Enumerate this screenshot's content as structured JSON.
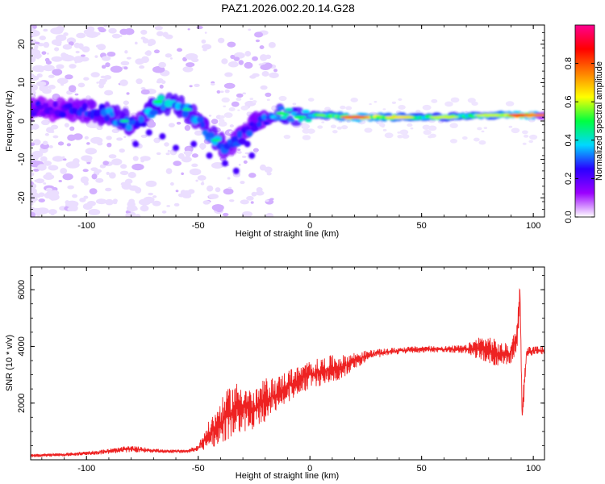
{
  "title": "PAZ1.2026.002.20.14.G28",
  "chart_data": [
    {
      "type": "heatmap",
      "xlabel": "Height of straight line (km)",
      "ylabel": "Frequency (Hz)",
      "xlim": [
        -125,
        105
      ],
      "ylim": [
        -25,
        25
      ],
      "xticks": [
        -100,
        -50,
        0,
        50,
        100
      ],
      "yticks": [
        -20,
        -10,
        0,
        10,
        20
      ],
      "colorbar": {
        "label": "Normalized spectral amplitude",
        "range": [
          0,
          1
        ],
        "ticks": [
          0.0,
          0.2,
          0.4,
          0.6,
          0.8
        ],
        "tick_labels": [
          "0.0",
          "0.2",
          "0.4",
          "0.6",
          "0.8"
        ],
        "colormap": [
          "#ffffff",
          "#9b00ff",
          "#2a00ff",
          "#00d8ff",
          "#00ff40",
          "#ffff00",
          "#ff8000",
          "#ff0000",
          "#ff0090"
        ]
      },
      "features": [
        {
          "x": -120,
          "y": 3,
          "amplitude": 0.25
        },
        {
          "x": -110,
          "y": 3,
          "amplitude": 0.3
        },
        {
          "x": -100,
          "y": 3,
          "amplitude": 0.35
        },
        {
          "x": -92,
          "y": 2,
          "amplitude": 0.4
        },
        {
          "x": -83,
          "y": 0,
          "amplitude": 0.45
        },
        {
          "x": -78,
          "y": -2,
          "amplitude": 0.35
        },
        {
          "x": -68,
          "y": 5,
          "amplitude": 0.5
        },
        {
          "x": -55,
          "y": 3,
          "amplitude": 0.45
        },
        {
          "x": -47,
          "y": -2,
          "amplitude": 0.4
        },
        {
          "x": -42,
          "y": -5,
          "amplitude": 0.45
        },
        {
          "x": -37,
          "y": -7,
          "amplitude": 0.35
        },
        {
          "x": -22,
          "y": 0,
          "amplitude": 0.35
        },
        {
          "x": -13,
          "y": 2,
          "amplitude": 0.5
        },
        {
          "x": -5,
          "y": 1,
          "amplitude": 0.5
        },
        {
          "x": 5,
          "y": 1.5,
          "amplitude": 0.55
        },
        {
          "x": 20,
          "y": 1,
          "amplitude": 0.8
        },
        {
          "x": 40,
          "y": 1,
          "amplitude": 0.65
        },
        {
          "x": 60,
          "y": 1,
          "amplitude": 0.6
        },
        {
          "x": 80,
          "y": 1.5,
          "amplitude": 0.6
        },
        {
          "x": 95,
          "y": 1.5,
          "amplitude": 0.85
        },
        {
          "x": 102,
          "y": 1.5,
          "amplitude": 0.75
        }
      ]
    },
    {
      "type": "line",
      "xlabel": "Height of straight line (km)",
      "ylabel": "SNR (10 * v/v)",
      "xlim": [
        -125,
        105
      ],
      "ylim": [
        0,
        6800
      ],
      "xticks": [
        -100,
        -50,
        0,
        50,
        100
      ],
      "yticks": [
        2000,
        4000,
        6000
      ],
      "series": [
        {
          "color": "#ee2222",
          "x": [
            -125,
            -110,
            -95,
            -80,
            -65,
            -55,
            -50,
            -45,
            -40,
            -35,
            -30,
            -25,
            -20,
            -15,
            -10,
            -5,
            0,
            5,
            10,
            15,
            20,
            25,
            30,
            40,
            50,
            60,
            70,
            75,
            80,
            85,
            90,
            93,
            94,
            95,
            97,
            100,
            105
          ],
          "y": [
            150,
            180,
            260,
            380,
            300,
            300,
            420,
            900,
            1300,
            1700,
            1900,
            1700,
            2100,
            2300,
            2600,
            2800,
            3000,
            3100,
            3200,
            3300,
            3500,
            3650,
            3750,
            3850,
            3900,
            3900,
            3900,
            3950,
            3900,
            3700,
            3750,
            4500,
            6000,
            1500,
            3800,
            3850,
            3850
          ],
          "amplitude": [
            60,
            60,
            80,
            120,
            60,
            60,
            120,
            500,
            800,
            1000,
            900,
            700,
            800,
            600,
            600,
            500,
            500,
            500,
            500,
            400,
            300,
            200,
            150,
            120,
            120,
            120,
            150,
            400,
            500,
            450,
            350,
            600,
            500,
            600,
            200,
            150,
            150
          ]
        }
      ]
    }
  ]
}
